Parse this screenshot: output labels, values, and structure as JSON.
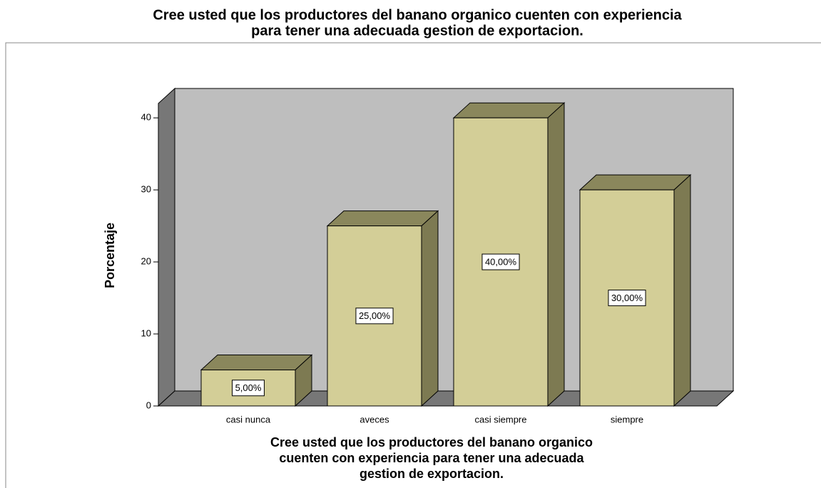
{
  "chart_data": {
    "type": "bar",
    "title": [
      "Cree usted que los productores del banano organico cuenten con experiencia",
      "para tener una adecuada gestion de exportacion."
    ],
    "x_label": [
      "Cree usted que los productores del banano organico",
      "cuenten con experiencia para tener una adecuada",
      "gestion de exportacion."
    ],
    "y_label": "Porcentaje",
    "categories": [
      "casi nunca",
      "aveces",
      "casi siempre",
      "siempre"
    ],
    "values": [
      5,
      25,
      40,
      30
    ],
    "value_labels": [
      "5,00%",
      "25,00%",
      "40,00%",
      "30,00%"
    ],
    "color": "#d3ce97",
    "ylim": [
      0,
      42
    ],
    "yticks": [
      0,
      10,
      20,
      30,
      40
    ]
  }
}
